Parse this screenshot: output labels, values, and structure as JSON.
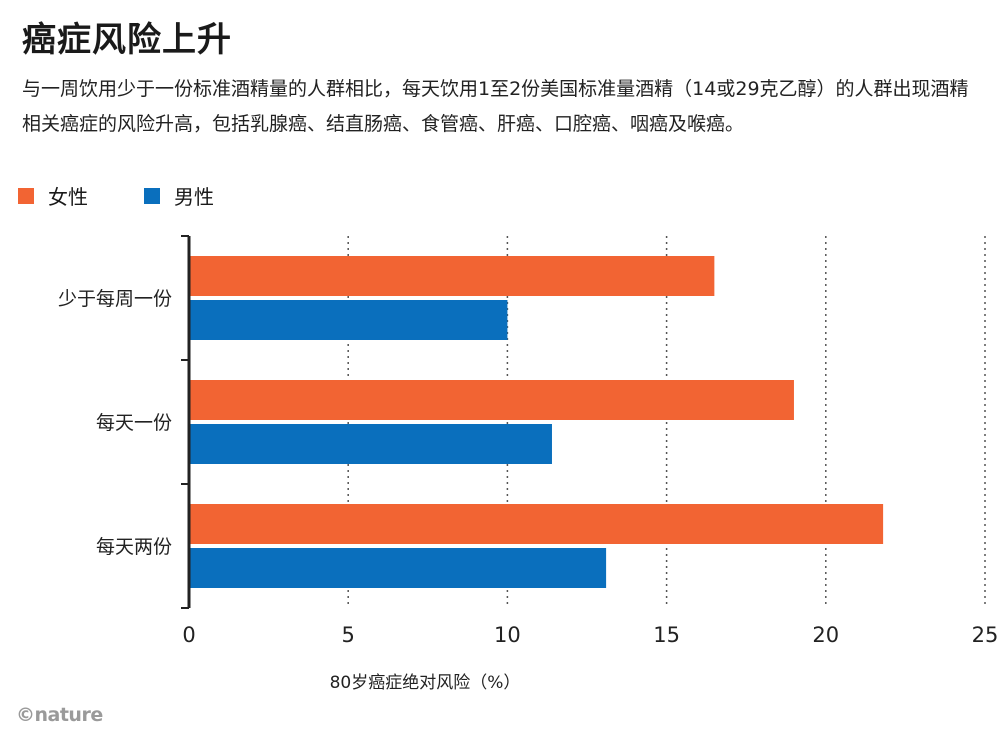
{
  "title": "癌症风险上升",
  "subtitle": "与一周饮用少于一份标准酒精量的人群相比，每天饮用1至2份美国标准量酒精（14或29克乙醇）的人群出现酒精相关癌症的风险升高，包括乳腺癌、结直肠癌、食管癌、肝癌、口腔癌、咽癌及喉癌。",
  "logo_text": "©nature",
  "colors": {
    "female": "#f26433",
    "male": "#0a6fbd",
    "axis": "#222222",
    "grid": "#555555"
  },
  "chart_data": {
    "type": "bar",
    "orientation": "horizontal",
    "categories": [
      "少于每周一份",
      "每天一份",
      "每天两份"
    ],
    "series": [
      {
        "name": "女性",
        "values": [
          16.5,
          19.0,
          21.8
        ]
      },
      {
        "name": "男性",
        "values": [
          10.0,
          11.4,
          13.1
        ]
      }
    ],
    "xlabel": "80岁癌症绝对风险（%）",
    "ylabel": "",
    "xlim": [
      0,
      25
    ],
    "xticks": [
      0,
      5,
      10,
      15,
      20,
      25
    ],
    "grid": "vertical-dotted",
    "legend_position": "top-left"
  }
}
